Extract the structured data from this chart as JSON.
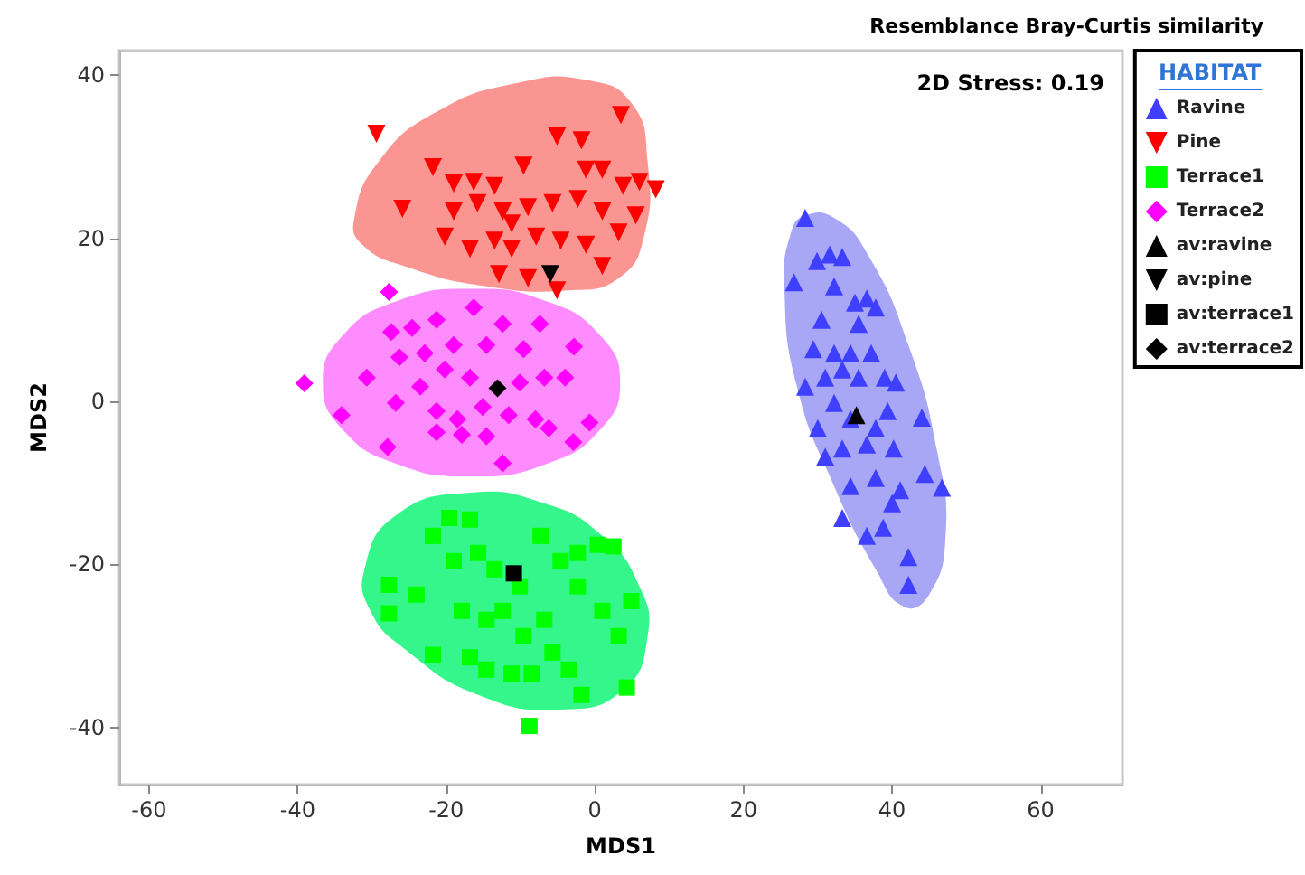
{
  "chart_data": {
    "type": "scatter",
    "title": "Resemblance Bray-Curtis similarity",
    "xlabel": "MDS1",
    "ylabel": "MDS2",
    "legend_title": "HABITAT",
    "annotations": [
      "2D Stress: 0.19"
    ],
    "xlim": [
      -64,
      71
    ],
    "ylim": [
      -47,
      43
    ],
    "xticks": [
      -60,
      -40,
      -20,
      0,
      20,
      40,
      60
    ],
    "yticks": [
      -40,
      -20,
      0,
      20,
      40
    ],
    "grid": false,
    "legend": "right",
    "series": [
      {
        "type": "area",
        "color": "#f98a86",
        "x": [
          -32.4,
          -29.1,
          -21.3,
          -10.1,
          -1.2,
          4.9,
          7.1,
          6.6,
          3.2,
          -3.5,
          -14.6,
          -25.7,
          -31.3
        ],
        "values": [
          22.3,
          29.4,
          35.5,
          39.1,
          39.4,
          36.6,
          29.4,
          20.2,
          15.1,
          13.6,
          14.1,
          16.6,
          19.2
        ]
      },
      {
        "type": "area",
        "color": "#ff80ff",
        "x": [
          3.4,
          0.7,
          -6.6,
          -16.6,
          -26.6,
          -33.9,
          -36.6,
          -33.9,
          -26.6,
          -16.6,
          -6.6,
          0.7
        ],
        "values": [
          2.3,
          8.1,
          12.3,
          13.8,
          12.3,
          8.1,
          2.3,
          -3.5,
          -7.7,
          -9.2,
          -7.7,
          -3.5
        ]
      },
      {
        "type": "area",
        "color": "#1ff57e",
        "x": [
          -31,
          -26.8,
          -16.8,
          -6.8,
          1,
          6,
          7.1,
          3.8,
          -4.6,
          -15.7,
          -25.7,
          -30.2
        ],
        "values": [
          -20.6,
          -14,
          -11.2,
          -12.5,
          -16.5,
          -22.7,
          -28.8,
          -35.4,
          -37.8,
          -36,
          -30.3,
          -25.7
        ]
      },
      {
        "type": "area",
        "color": "#9d9df5",
        "x": [
          28.3,
          32.2,
          36.6,
          42.2,
          46.1,
          47.2,
          45,
          41.6,
          37.8,
          32.2,
          27.2,
          25.5,
          26.4
        ],
        "values": [
          22.8,
          22.5,
          18.2,
          6.9,
          -6.3,
          -16.5,
          -23.7,
          -25.2,
          -20.6,
          -10.4,
          1.8,
          14.1,
          20.7
        ]
      },
      {
        "name": "Ravine",
        "color": "#3f3fff",
        "marker": "triangle",
        "x": [
          28.3,
          26.8,
          29.9,
          31.6,
          33.3,
          32.2,
          35,
          36.6,
          37.8,
          35.5,
          30.5,
          29.4,
          32.2,
          34.4,
          37.2,
          28.3,
          31,
          33.3,
          35.5,
          39,
          40.5,
          30,
          32.2,
          34.4,
          37.8,
          39.4,
          31,
          33.3,
          36.6,
          40.2,
          44,
          34.4,
          37.8,
          41.1,
          44.4,
          46.7,
          33.3,
          36.6,
          38.8,
          40,
          42.2,
          42.2
        ],
        "values": [
          22.5,
          14.6,
          17.2,
          18,
          17.7,
          14.1,
          12.1,
          12.6,
          11.5,
          9.5,
          10,
          6.4,
          5.9,
          5.9,
          5.9,
          1.8,
          2.9,
          3.9,
          2.9,
          2.9,
          2.3,
          -3.3,
          -0.2,
          -2.2,
          -3.3,
          -1.2,
          -6.8,
          -5.8,
          -5.3,
          -5.8,
          -2,
          -10.4,
          -9.4,
          -10.9,
          -8.9,
          -10.6,
          -14.3,
          -16.5,
          -15.5,
          -12.5,
          -19.1,
          -22.5
        ]
      },
      {
        "name": "Pine",
        "color": "#ff0000",
        "marker": "triangle-down",
        "x": [
          -29.4,
          3.5,
          -21.8,
          -25.9,
          -19,
          -16.3,
          -13.5,
          -9.6,
          -5.1,
          -1.8,
          -1.2,
          1,
          3.8,
          6,
          8.2,
          -19,
          -15.8,
          -12.4,
          -9,
          -5.7,
          -2.3,
          1,
          5.5,
          -20.2,
          -16.8,
          -13.5,
          -11.2,
          -7.9,
          -4.6,
          -1.2,
          3.2,
          -12.9,
          -9,
          -5.1,
          1,
          -11.2
        ],
        "values": [
          32.8,
          35.1,
          28.7,
          23.6,
          26.7,
          26.9,
          26.4,
          28.9,
          32.5,
          32,
          28.4,
          28.4,
          26.4,
          26.9,
          26,
          23.3,
          24.3,
          23.3,
          23.8,
          24.3,
          24.8,
          23.3,
          22.8,
          20.2,
          18.7,
          19.7,
          18.7,
          20.2,
          19.7,
          19.2,
          20.7,
          15.6,
          15.1,
          13.6,
          16.6,
          21.8
        ]
      },
      {
        "name": "Terrace1",
        "color": "#00ff00",
        "marker": "square",
        "x": [
          -27.7,
          -27.7,
          -24,
          -21.8,
          -21.8,
          -19.6,
          -16.8,
          -19,
          -15.7,
          -13.5,
          -17.9,
          -14.6,
          -16.8,
          -14.6,
          -11.2,
          -8.5,
          -9.6,
          -6.8,
          -5.7,
          -1.8,
          -7.3,
          -4.6,
          -2.3,
          0.4,
          2.5,
          -2.3,
          1,
          4.9,
          3.2,
          4.3,
          -3.5,
          -8.8,
          -10.1,
          -12.4
        ],
        "values": [
          -22.5,
          -26,
          -23.7,
          -31.1,
          -16.5,
          -14.3,
          -14.5,
          -19.6,
          -18.6,
          -20.6,
          -25.7,
          -26.8,
          -31.4,
          -32.9,
          -33.4,
          -33.4,
          -28.8,
          -26.8,
          -30.8,
          -36,
          -16.5,
          -19.6,
          -18.6,
          -17.6,
          -17.8,
          -22.7,
          -25.7,
          -24.5,
          -28.8,
          -35.1,
          -32.9,
          -39.8,
          -22.7,
          -25.7
        ]
      },
      {
        "name": "Terrace2",
        "color": "#ff00ff",
        "marker": "diamond",
        "x": [
          -27.7,
          -39.1,
          -34.1,
          -27.9,
          -30.7,
          -27.4,
          -24.6,
          -21.3,
          -16.3,
          -12.4,
          -7.4,
          -2.8,
          -26.3,
          -22.9,
          -19,
          -14.6,
          -9.6,
          -26.8,
          -23.5,
          -20.2,
          -16.8,
          -10.1,
          -6.8,
          -4,
          -21.3,
          -18.5,
          -15.1,
          -11.6,
          -8,
          -6.2,
          -0.7,
          -2.9,
          -21.3,
          -17.9,
          -14.6,
          -12.4
        ],
        "values": [
          13.4,
          2.2,
          -1.7,
          -5.6,
          2.9,
          8.5,
          9,
          10,
          11.5,
          9.5,
          9.5,
          6.7,
          5.4,
          5.9,
          6.9,
          6.9,
          6.4,
          -0.2,
          1.8,
          3.9,
          2.9,
          2.3,
          2.9,
          2.9,
          -1.2,
          -2.2,
          -0.7,
          -1.7,
          -2.2,
          -3.3,
          -2.6,
          -5,
          -3.8,
          -4.1,
          -4.3,
          -7.6
        ]
      },
      {
        "name": "av:ravine",
        "color": "#000000",
        "marker": "triangle",
        "x": [
          35.2
        ],
        "values": [
          -1.7
        ]
      },
      {
        "name": "av:pine",
        "color": "#000000",
        "marker": "triangle-down",
        "x": [
          -6
        ],
        "values": [
          15.6
        ]
      },
      {
        "name": "av:terrace1",
        "color": "#000000",
        "marker": "square",
        "x": [
          -10.9
        ],
        "values": [
          -21.1
        ]
      },
      {
        "name": "av:terrace2",
        "color": "#000000",
        "marker": "diamond",
        "x": [
          -13.1
        ],
        "values": [
          1.6
        ]
      }
    ]
  }
}
